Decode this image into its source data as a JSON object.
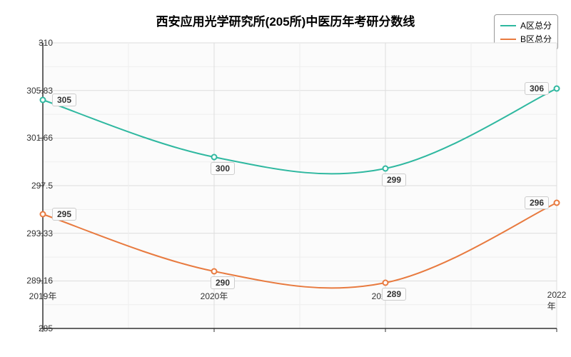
{
  "chart": {
    "type": "line",
    "title": "西安应用光学研究所(205所)中医历年考研分数线",
    "title_fontsize": 17,
    "background_color": "#ffffff",
    "plot_background_color": "#fbfbfb",
    "axis_color": "#333333",
    "major_grid_color": "#dddddd",
    "minor_grid_color": "#eeeeee",
    "x": {
      "categories": [
        "2019年",
        "2020年",
        "2021年",
        "2022年"
      ],
      "positions": [
        0,
        240,
        480,
        720
      ]
    },
    "y": {
      "min": 285,
      "max": 310,
      "ticks": [
        285,
        289.16,
        293.33,
        297.5,
        301.66,
        305.83,
        310
      ],
      "tick_labels": [
        "285",
        "289.16",
        "293.33",
        "297.5",
        "301.66",
        "305.83",
        "310"
      ]
    },
    "series": [
      {
        "name": "A区总分",
        "color": "#2fb8a0",
        "line_width": 2,
        "values": [
          305,
          300,
          299,
          306
        ],
        "labels": [
          "305",
          "300",
          "299",
          "306"
        ]
      },
      {
        "name": "B区总分",
        "color": "#e87a3f",
        "line_width": 2,
        "values": [
          295,
          290,
          289,
          296
        ],
        "labels": [
          "295",
          "290",
          "289",
          "296"
        ]
      }
    ],
    "label_fontsize": 12
  }
}
